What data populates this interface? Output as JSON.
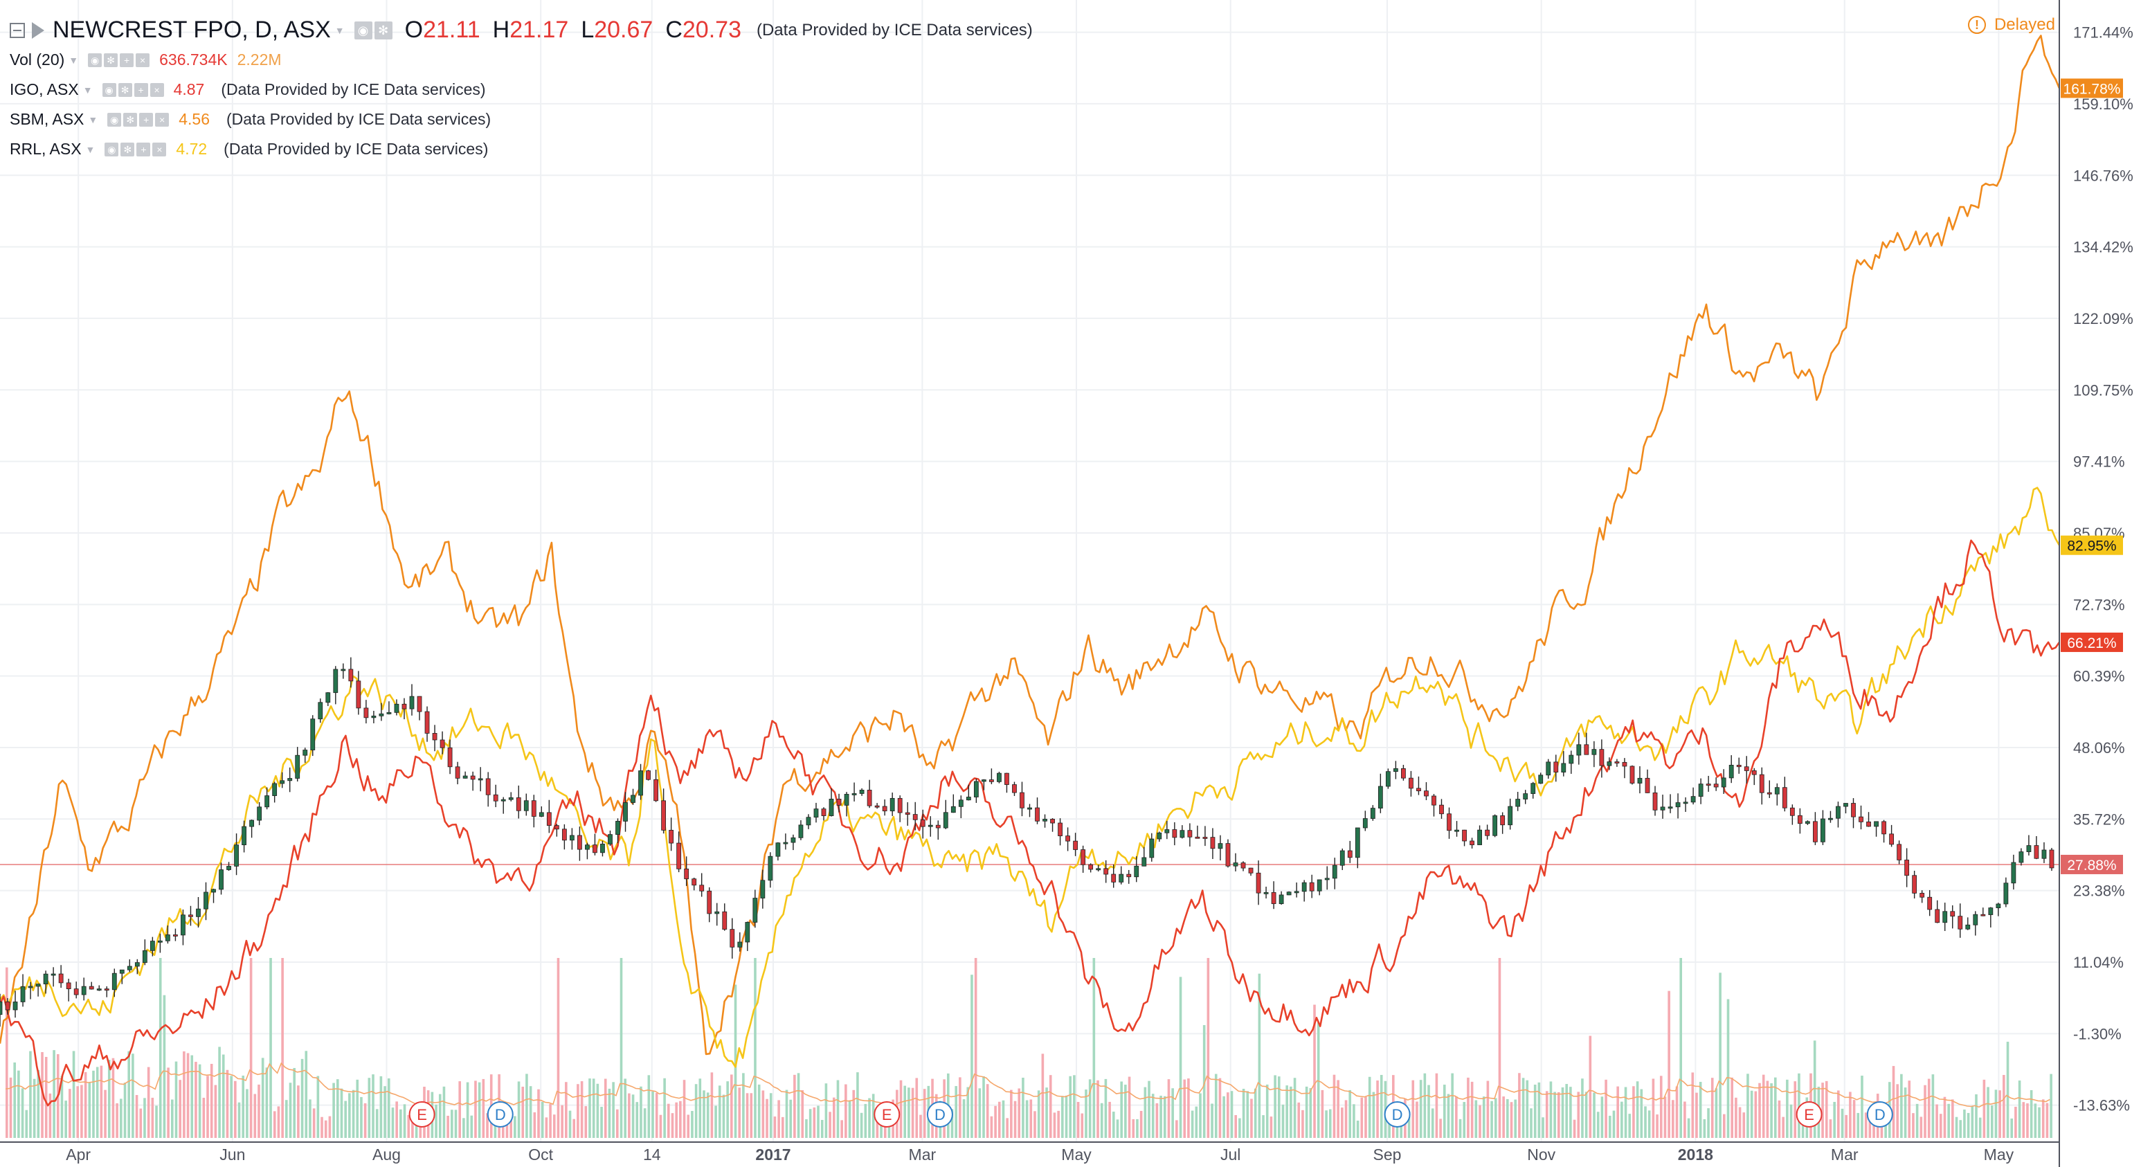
{
  "header": {
    "symbol": "NEWCREST FPO, D, ASX",
    "ohlc": [
      {
        "label": "O",
        "value": "21.11"
      },
      {
        "label": "H",
        "value": "21.17"
      },
      {
        "label": "L",
        "value": "20.67"
      },
      {
        "label": "C",
        "value": "20.73"
      }
    ],
    "source": "(Data Provided by ICE Data services)",
    "delayed": "Delayed",
    "delayed_icon": "!"
  },
  "studies": {
    "volume": {
      "title": "Vol (20)",
      "value": "636.734K",
      "average": "2.22M"
    },
    "igo": {
      "title": "IGO, ASX",
      "value": "4.87",
      "source": "(Data Provided by ICE Data services)",
      "color": "#e8412a"
    },
    "sbm": {
      "title": "SBM, ASX",
      "value": "4.56",
      "source": "(Data Provided by ICE Data services)",
      "color": "#f08a1c"
    },
    "rrl": {
      "title": "RRL, ASX",
      "value": "4.72",
      "source": "(Data Provided by ICE Data services)",
      "color": "#f5c518"
    }
  },
  "colors": {
    "up": "#26734d",
    "down": "#d4373c",
    "vol_up": "#a5d9c0",
    "vol_down": "#f5aab1",
    "grid": "#eef0f3",
    "axis_text": "#50535e",
    "last_price_line": "#e77b7b"
  },
  "chart_data": {
    "type": "line",
    "xlabel": "",
    "ylabel": "",
    "y_scale": "percent",
    "ylim": [
      -20.0,
      177.0
    ],
    "y_ticks": [
      "171.44%",
      "159.10%",
      "146.76%",
      "134.42%",
      "122.09%",
      "109.75%",
      "97.41%",
      "85.07%",
      "72.73%",
      "60.39%",
      "48.06%",
      "35.72%",
      "23.38%",
      "11.04%",
      "-1.30%",
      "-13.63%"
    ],
    "y_tick_values": [
      171.44,
      159.1,
      146.76,
      134.42,
      122.09,
      109.75,
      97.41,
      85.07,
      72.73,
      60.39,
      48.06,
      35.72,
      23.38,
      11.04,
      -1.3,
      -13.63
    ],
    "x_range": [
      "2016-03-01",
      "2018-05-25"
    ],
    "x_ticks": [
      {
        "date": "2016-04-01",
        "label": "Apr",
        "bold": false
      },
      {
        "date": "2016-06-01",
        "label": "Jun",
        "bold": false
      },
      {
        "date": "2016-08-01",
        "label": "Aug",
        "bold": false
      },
      {
        "date": "2016-10-01",
        "label": "Oct",
        "bold": false
      },
      {
        "date": "2016-11-14",
        "label": "14",
        "bold": false
      },
      {
        "date": "2017-01-01",
        "label": "2017",
        "bold": true
      },
      {
        "date": "2017-03-01",
        "label": "Mar",
        "bold": false
      },
      {
        "date": "2017-05-01",
        "label": "May",
        "bold": false
      },
      {
        "date": "2017-07-01",
        "label": "Jul",
        "bold": false
      },
      {
        "date": "2017-09-01",
        "label": "Sep",
        "bold": false
      },
      {
        "date": "2017-11-01",
        "label": "Nov",
        "bold": false
      },
      {
        "date": "2018-01-01",
        "label": "2018",
        "bold": true
      },
      {
        "date": "2018-03-01",
        "label": "Mar",
        "bold": false
      },
      {
        "date": "2018-05-01",
        "label": "May",
        "bold": false
      }
    ],
    "last_values": [
      {
        "series": "SBM, ASX",
        "label": "161.78%",
        "value": 161.78,
        "color": "#f08a1c"
      },
      {
        "series": "RRL, ASX",
        "label": "82.95%",
        "value": 82.95,
        "color": "#f5c518"
      },
      {
        "series": "IGO, ASX",
        "label": "66.21%",
        "value": 66.21,
        "color": "#e8412a"
      },
      {
        "series": "NEWCREST FPO, D, ASX",
        "label": "27.88%",
        "value": 27.88,
        "color": "#e06666"
      }
    ],
    "events": [
      {
        "date": "2016-08-15",
        "label": "E",
        "kind": "earnings"
      },
      {
        "date": "2016-09-15",
        "label": "D",
        "kind": "dividend"
      },
      {
        "date": "2017-02-15",
        "label": "E",
        "kind": "earnings"
      },
      {
        "date": "2017-03-08",
        "label": "D",
        "kind": "dividend"
      },
      {
        "date": "2017-09-05",
        "label": "D",
        "kind": "dividend"
      },
      {
        "date": "2018-02-15",
        "label": "E",
        "kind": "earnings"
      },
      {
        "date": "2018-03-15",
        "label": "D",
        "kind": "dividend"
      }
    ],
    "series": [
      {
        "name": "SBM, ASX",
        "color": "#f08a1c",
        "x": [
          "2016-03-01",
          "2016-03-15",
          "2016-03-25",
          "2016-04-05",
          "2016-04-20",
          "2016-05-05",
          "2016-05-20",
          "2016-06-05",
          "2016-06-20",
          "2016-07-05",
          "2016-07-15",
          "2016-07-25",
          "2016-08-10",
          "2016-08-25",
          "2016-09-10",
          "2016-09-25",
          "2016-10-05",
          "2016-10-15",
          "2016-10-25",
          "2016-11-05",
          "2016-11-14",
          "2016-11-25",
          "2016-12-05",
          "2016-12-15",
          "2016-12-25",
          "2017-01-05",
          "2017-01-20",
          "2017-02-05",
          "2017-02-20",
          "2017-03-05",
          "2017-03-20",
          "2017-04-05",
          "2017-04-20",
          "2017-05-05",
          "2017-05-20",
          "2017-06-05",
          "2017-06-20",
          "2017-07-05",
          "2017-07-20",
          "2017-08-05",
          "2017-08-20",
          "2017-09-05",
          "2017-09-20",
          "2017-10-05",
          "2017-10-20",
          "2017-11-05",
          "2017-11-20",
          "2017-12-05",
          "2017-12-20",
          "2018-01-05",
          "2018-01-20",
          "2018-02-05",
          "2018-02-20",
          "2018-03-05",
          "2018-03-20",
          "2018-04-05",
          "2018-04-20",
          "2018-05-05",
          "2018-05-15",
          "2018-05-25"
        ],
        "values": [
          -3,
          20,
          42,
          28,
          35,
          48,
          58,
          70,
          88,
          95,
          110,
          100,
          75,
          80,
          68,
          70,
          82,
          52,
          40,
          38,
          50,
          35,
          -5,
          8,
          18,
          42,
          46,
          50,
          54,
          42,
          55,
          62,
          48,
          66,
          58,
          65,
          70,
          62,
          58,
          55,
          50,
          62,
          65,
          58,
          55,
          70,
          78,
          95,
          110,
          124,
          112,
          115,
          108,
          128,
          138,
          132,
          142,
          152,
          172,
          161.78
        ]
      },
      {
        "name": "RRL, ASX",
        "color": "#f5c518",
        "x": [
          "2016-03-01",
          "2016-03-20",
          "2016-04-10",
          "2016-04-30",
          "2016-05-20",
          "2016-06-10",
          "2016-06-30",
          "2016-07-20",
          "2016-08-05",
          "2016-08-20",
          "2016-09-05",
          "2016-09-20",
          "2016-10-05",
          "2016-10-20",
          "2016-11-05",
          "2016-11-14",
          "2016-11-25",
          "2016-12-05",
          "2016-12-15",
          "2016-12-25",
          "2017-01-10",
          "2017-01-25",
          "2017-02-10",
          "2017-02-25",
          "2017-03-15",
          "2017-04-01",
          "2017-04-20",
          "2017-05-05",
          "2017-05-20",
          "2017-06-05",
          "2017-06-20",
          "2017-07-05",
          "2017-07-20",
          "2017-08-05",
          "2017-08-20",
          "2017-09-05",
          "2017-09-20",
          "2017-10-05",
          "2017-10-20",
          "2017-11-05",
          "2017-11-20",
          "2017-12-05",
          "2017-12-20",
          "2018-01-05",
          "2018-01-20",
          "2018-02-05",
          "2018-02-20",
          "2018-03-05",
          "2018-03-20",
          "2018-04-05",
          "2018-04-20",
          "2018-05-05",
          "2018-05-15",
          "2018-05-25"
        ],
        "values": [
          4,
          8,
          2,
          14,
          22,
          38,
          48,
          60,
          55,
          48,
          52,
          50,
          42,
          30,
          28,
          52,
          10,
          4,
          -8,
          0,
          28,
          36,
          34,
          32,
          26,
          30,
          18,
          32,
          28,
          36,
          40,
          44,
          48,
          52,
          50,
          58,
          62,
          50,
          46,
          42,
          52,
          50,
          48,
          56,
          65,
          62,
          56,
          52,
          62,
          72,
          78,
          84,
          90,
          82.95
        ]
      },
      {
        "name": "IGO, ASX",
        "color": "#e8412a",
        "x": [
          "2016-03-01",
          "2016-03-20",
          "2016-04-10",
          "2016-04-30",
          "2016-05-20",
          "2016-06-10",
          "2016-06-30",
          "2016-07-15",
          "2016-07-30",
          "2016-08-15",
          "2016-08-30",
          "2016-09-15",
          "2016-09-30",
          "2016-10-15",
          "2016-10-30",
          "2016-11-14",
          "2016-11-25",
          "2016-12-05",
          "2016-12-20",
          "2017-01-05",
          "2017-01-20",
          "2017-02-05",
          "2017-02-20",
          "2017-03-10",
          "2017-03-30",
          "2017-04-20",
          "2017-05-05",
          "2017-05-20",
          "2017-06-05",
          "2017-06-20",
          "2017-07-05",
          "2017-07-20",
          "2017-08-05",
          "2017-08-20",
          "2017-09-05",
          "2017-09-20",
          "2017-10-05",
          "2017-10-20",
          "2017-11-05",
          "2017-11-20",
          "2017-12-05",
          "2017-12-20",
          "2018-01-05",
          "2018-01-20",
          "2018-02-05",
          "2018-02-20",
          "2018-03-05",
          "2018-03-20",
          "2018-04-05",
          "2018-04-20",
          "2018-05-05",
          "2018-05-15",
          "2018-05-25"
        ],
        "values": [
          6,
          -10,
          -6,
          -2,
          2,
          14,
          32,
          50,
          38,
          48,
          32,
          26,
          28,
          38,
          32,
          60,
          40,
          48,
          44,
          52,
          40,
          32,
          28,
          44,
          36,
          26,
          8,
          -2,
          12,
          22,
          8,
          4,
          2,
          8,
          14,
          26,
          22,
          16,
          30,
          42,
          52,
          46,
          50,
          38,
          64,
          70,
          60,
          54,
          72,
          82,
          68,
          63,
          66.21
        ]
      },
      {
        "name": "NEWCREST FPO, D, ASX",
        "color": "#26734d",
        "x": [
          "2016-03-01",
          "2016-03-20",
          "2016-04-10",
          "2016-04-30",
          "2016-05-20",
          "2016-06-10",
          "2016-06-30",
          "2016-07-15",
          "2016-07-30",
          "2016-08-15",
          "2016-08-30",
          "2016-09-15",
          "2016-09-30",
          "2016-10-15",
          "2016-10-30",
          "2016-11-14",
          "2016-11-25",
          "2016-12-05",
          "2016-12-20",
          "2017-01-05",
          "2017-01-20",
          "2017-02-05",
          "2017-02-20",
          "2017-03-10",
          "2017-03-30",
          "2017-04-20",
          "2017-05-05",
          "2017-05-20",
          "2017-06-05",
          "2017-06-20",
          "2017-07-05",
          "2017-07-20",
          "2017-08-05",
          "2017-08-20",
          "2017-09-05",
          "2017-09-20",
          "2017-10-05",
          "2017-10-20",
          "2017-11-05",
          "2017-11-20",
          "2017-12-05",
          "2017-12-20",
          "2018-01-05",
          "2018-01-20",
          "2018-02-05",
          "2018-02-20",
          "2018-03-05",
          "2018-03-20",
          "2018-04-05",
          "2018-04-20",
          "2018-05-05",
          "2018-05-15",
          "2018-05-25"
        ],
        "values": [
          2,
          8,
          6,
          12,
          20,
          34,
          46,
          62,
          52,
          56,
          44,
          40,
          38,
          32,
          30,
          46,
          30,
          24,
          14,
          30,
          36,
          40,
          38,
          34,
          44,
          36,
          30,
          24,
          32,
          34,
          28,
          22,
          24,
          30,
          44,
          38,
          32,
          36,
          44,
          48,
          45,
          38,
          40,
          44,
          40,
          33,
          38,
          34,
          20,
          18,
          22,
          32,
          27.88
        ]
      }
    ]
  }
}
